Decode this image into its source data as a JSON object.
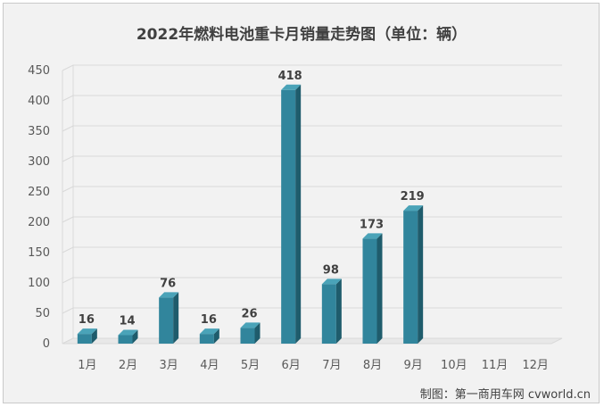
{
  "chart_data": {
    "type": "bar",
    "title": "2022年燃料电池重卡月销量走势图（单位：辆）",
    "categories": [
      "1月",
      "2月",
      "3月",
      "4月",
      "5月",
      "6月",
      "7月",
      "8月",
      "9月",
      "10月",
      "11月",
      "12月"
    ],
    "values": [
      16,
      14,
      76,
      16,
      26,
      418,
      98,
      173,
      219,
      null,
      null,
      null
    ],
    "ylim": [
      0,
      450
    ],
    "yticks": [
      0,
      50,
      100,
      150,
      200,
      250,
      300,
      350,
      400,
      450
    ],
    "grid": true,
    "legend": "none",
    "bar_color": "#31859c",
    "bar_top_color": "#4aa3b8",
    "bar_side_color": "#1f5c6c",
    "data_labels": true
  },
  "credit": "制图：第一商用车网 cvworld.cn"
}
